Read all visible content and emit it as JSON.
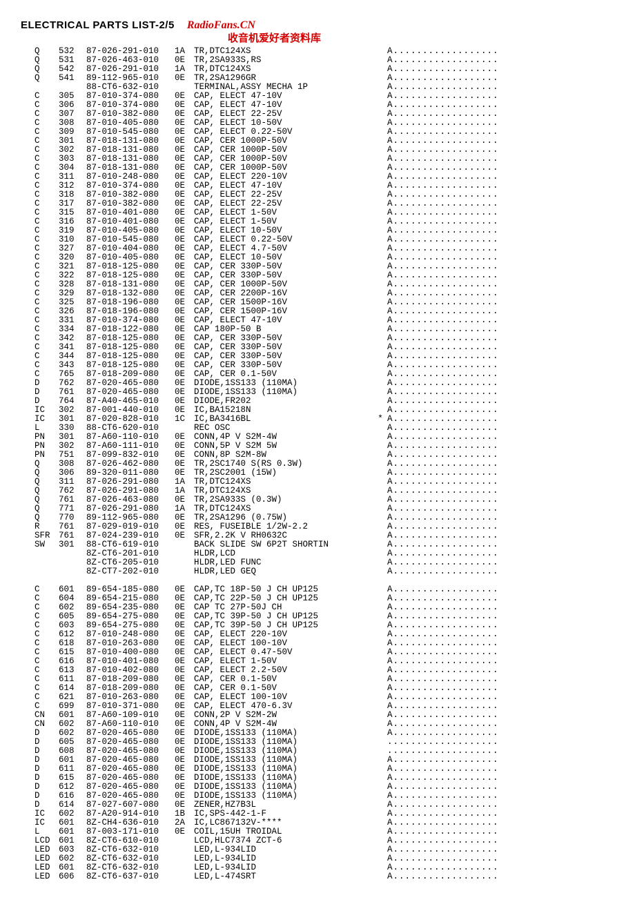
{
  "title": "ELECTRICAL PARTS LIST-2/5",
  "brand": "RadioFans.CN",
  "brand_sub": "收音机爱好者资料库",
  "watermark": "radiofans.cn",
  "dots_A": "A..................",
  "dots_noA": "...................",
  "font_family": "Courier New, monospace",
  "font_size_pt": 9,
  "text_color": "#000000",
  "accent_color": "#d40000",
  "bg_color": "#ffffff",
  "block1": [
    [
      "Q",
      "532",
      "87-026-291-010",
      "1A",
      "TR,DTC124XS",
      "",
      "A"
    ],
    [
      "Q",
      "531",
      "87-026-463-010",
      "0E",
      "TR,2SA933S,RS",
      "",
      "A"
    ],
    [
      "Q",
      "542",
      "87-026-291-010",
      "1A",
      "TR,DTC124XS",
      "",
      "A"
    ],
    [
      "Q",
      "541",
      "89-112-965-010",
      "0E",
      "TR,2SA1296GR",
      "",
      "A"
    ],
    [
      "",
      "",
      "88-CT6-632-010",
      "",
      "TERMINAL,ASSY MECHA 1P",
      "",
      "A"
    ],
    [
      "C",
      "305",
      "87-010-374-080",
      "0E",
      "CAP, ELECT 47-10V",
      "",
      "A"
    ],
    [
      "C",
      "306",
      "87-010-374-080",
      "0E",
      "CAP, ELECT 47-10V",
      "",
      "A"
    ],
    [
      "C",
      "307",
      "87-010-382-080",
      "0E",
      "CAP, ELECT 22-25V",
      "",
      "A"
    ],
    [
      "C",
      "308",
      "87-010-405-080",
      "0E",
      "CAP, ELECT 10-50V",
      "",
      "A"
    ],
    [
      "C",
      "309",
      "87-010-545-080",
      "0E",
      "CAP, ELECT 0.22-50V",
      "",
      "A"
    ],
    [
      "C",
      "301",
      "87-018-131-080",
      "0E",
      "CAP, CER 1000P-50V",
      "",
      "A"
    ],
    [
      "C",
      "302",
      "87-018-131-080",
      "0E",
      "CAP, CER 1000P-50V",
      "",
      "A"
    ],
    [
      "C",
      "303",
      "87-018-131-080",
      "0E",
      "CAP, CER 1000P-50V",
      "",
      "A"
    ],
    [
      "C",
      "304",
      "87-018-131-080",
      "0E",
      "CAP, CER 1000P-50V",
      "",
      "A"
    ],
    [
      "C",
      "311",
      "87-010-248-080",
      "0E",
      "CAP, ELECT 220-10V",
      "",
      "A"
    ],
    [
      "C",
      "312",
      "87-010-374-080",
      "0E",
      "CAP, ELECT 47-10V",
      "",
      "A"
    ],
    [
      "C",
      "318",
      "87-010-382-080",
      "0E",
      "CAP, ELECT 22-25V",
      "",
      "A"
    ],
    [
      "C",
      "317",
      "87-010-382-080",
      "0E",
      "CAP, ELECT 22-25V",
      "",
      "A"
    ],
    [
      "C",
      "315",
      "87-010-401-080",
      "0E",
      "CAP, ELECT 1-50V",
      "",
      "A"
    ],
    [
      "C",
      "316",
      "87-010-401-080",
      "0E",
      "CAP, ELECT 1-50V",
      "",
      "A"
    ],
    [
      "C",
      "319",
      "87-010-405-080",
      "0E",
      "CAP, ELECT 10-50V",
      "",
      "A"
    ],
    [
      "C",
      "310",
      "87-010-545-080",
      "0E",
      "CAP, ELECT 0.22-50V",
      "",
      "A"
    ],
    [
      "C",
      "327",
      "87-010-404-080",
      "0E",
      "CAP, ELECT 4.7-50V",
      "",
      "A"
    ],
    [
      "C",
      "320",
      "87-010-405-080",
      "0E",
      "CAP, ELECT 10-50V",
      "",
      "A"
    ],
    [
      "C",
      "321",
      "87-018-125-080",
      "0E",
      "CAP, CER 330P-50V",
      "",
      "A"
    ],
    [
      "C",
      "322",
      "87-018-125-080",
      "0E",
      "CAP, CER 330P-50V",
      "",
      "A"
    ],
    [
      "C",
      "328",
      "87-018-131-080",
      "0E",
      "CAP, CER 1000P-50V",
      "",
      "A"
    ],
    [
      "C",
      "329",
      "87-018-132-080",
      "0E",
      "CAP, CER 2200P-16V",
      "",
      "A"
    ],
    [
      "C",
      "325",
      "87-018-196-080",
      "0E",
      "CAP, CER 1500P-16V",
      "",
      "A"
    ],
    [
      "C",
      "326",
      "87-018-196-080",
      "0E",
      "CAP, CER 1500P-16V",
      "",
      "A"
    ],
    [
      "C",
      "331",
      "87-010-374-080",
      "0E",
      "CAP, ELECT 47-10V",
      "",
      "A"
    ],
    [
      "C",
      "334",
      "87-018-122-080",
      "0E",
      "CAP 180P-50 B",
      "",
      "A"
    ],
    [
      "C",
      "342",
      "87-018-125-080",
      "0E",
      "CAP, CER 330P-50V",
      "",
      "A"
    ],
    [
      "C",
      "341",
      "87-018-125-080",
      "0E",
      "CAP, CER 330P-50V",
      "",
      "A"
    ],
    [
      "C",
      "344",
      "87-018-125-080",
      "0E",
      "CAP, CER 330P-50V",
      "",
      "A"
    ],
    [
      "C",
      "343",
      "87-018-125-080",
      "0E",
      "CAP, CER 330P-50V",
      "",
      "A"
    ],
    [
      "C",
      "765",
      "87-018-209-080",
      "0E",
      "CAP, CER 0.1-50V",
      "",
      "A"
    ],
    [
      "D",
      "762",
      "87-020-465-080",
      "0E",
      "DIODE,1SS133 (110MA)",
      "",
      "A"
    ],
    [
      "D",
      "761",
      "87-020-465-080",
      "0E",
      "DIODE,1SS133 (110MA)",
      "",
      "A"
    ],
    [
      "D",
      "764",
      "87-A40-465-010",
      "0E",
      "DIODE,FR202",
      "",
      "A"
    ],
    [
      "IC",
      "302",
      "87-001-440-010",
      "0E",
      "IC,BA15218N",
      "",
      "A"
    ],
    [
      "IC",
      "301",
      "87-020-828-010",
      "1C",
      "IC,BA3416BL",
      "*",
      "A"
    ],
    [
      "L",
      "330",
      "88-CT6-620-010",
      "",
      "REC OSC",
      "",
      "A"
    ],
    [
      "PN",
      "301",
      "87-A60-110-010",
      "0E",
      "CONN,4P V S2M-4W",
      "",
      "A"
    ],
    [
      "PN",
      "302",
      "87-A60-111-010",
      "0E",
      "CONN,5P V S2M 5W",
      "",
      "A"
    ],
    [
      "PN",
      "751",
      "87-099-832-010",
      "0E",
      "CONN,8P S2M-8W",
      "",
      "A"
    ],
    [
      "Q",
      "308",
      "87-026-462-080",
      "0E",
      "TR,2SC1740 S(RS 0.3W)",
      "",
      "A"
    ],
    [
      "Q",
      "306",
      "89-320-011-080",
      "0E",
      "TR,2SC2001 (15W)",
      "",
      "A"
    ],
    [
      "Q",
      "311",
      "87-026-291-080",
      "1A",
      "TR,DTC124XS",
      "",
      "A"
    ],
    [
      "Q",
      "762",
      "87-026-291-080",
      "1A",
      "TR,DTC124XS",
      "",
      "A"
    ],
    [
      "Q",
      "761",
      "87-026-463-080",
      "0E",
      "TR,2SA933S (0.3W)",
      "",
      "A"
    ],
    [
      "Q",
      "771",
      "87-026-291-080",
      "1A",
      "TR,DTC124XS",
      "",
      "A"
    ],
    [
      "Q",
      "770",
      "89-112-965-080",
      "0E",
      "TR,2SA1296 (0.75W)",
      "",
      "A"
    ],
    [
      "R",
      "761",
      "87-029-019-010",
      "0E",
      "RES, FUSEIBLE 1/2W-2.2",
      "",
      "A"
    ],
    [
      "SFR",
      "761",
      "87-024-239-010",
      "0E",
      "SFR,2.2K V RH0632C",
      "",
      "A"
    ],
    [
      "SW",
      "301",
      "88-CT6-619-010",
      "",
      "BACK SLIDE SW 6P2T SHORTIN",
      "",
      "A"
    ],
    [
      "",
      "",
      "8Z-CT6-201-010",
      "",
      "HLDR,LCD",
      "",
      "A"
    ],
    [
      "",
      "",
      "8Z-CT6-205-010",
      "",
      "HLDR,LED FUNC",
      "",
      "A"
    ],
    [
      "",
      "",
      "8Z-CT7-202-010",
      "",
      "HLDR,LED GEQ",
      "",
      "A"
    ]
  ],
  "block2": [
    [
      "C",
      "601",
      "89-654-185-080",
      "0E",
      "CAP,TC 18P-50 J CH UP125",
      "",
      "A"
    ],
    [
      "C",
      "604",
      "89-654-215-080",
      "0E",
      "CAP,TC 22P-50 J CH UP125",
      "",
      "A"
    ],
    [
      "C",
      "602",
      "89-654-235-080",
      "0E",
      "CAP TC 27P-50J CH",
      "",
      "A"
    ],
    [
      "C",
      "605",
      "89-654-275-080",
      "0E",
      "CAP,TC 39P-50 J CH UP125",
      "",
      "A"
    ],
    [
      "C",
      "603",
      "89-654-275-080",
      "0E",
      "CAP,TC 39P-50 J CH UP125",
      "",
      "A"
    ],
    [
      "C",
      "612",
      "87-010-248-080",
      "0E",
      "CAP, ELECT 220-10V",
      "",
      "A"
    ],
    [
      "C",
      "618",
      "87-010-263-080",
      "0E",
      "CAP, ELECT 100-10V",
      "",
      "A"
    ],
    [
      "C",
      "615",
      "87-010-400-080",
      "0E",
      "CAP, ELECT 0.47-50V",
      "",
      "A"
    ],
    [
      "C",
      "616",
      "87-010-401-080",
      "0E",
      "CAP, ELECT 1-50V",
      "",
      "A"
    ],
    [
      "C",
      "613",
      "87-010-402-080",
      "0E",
      "CAP, ELECT 2.2-50V",
      "",
      "A"
    ],
    [
      "C",
      "611",
      "87-018-209-080",
      "0E",
      "CAP, CER 0.1-50V",
      "",
      "A"
    ],
    [
      "C",
      "614",
      "87-018-209-080",
      "0E",
      "CAP, CER 0.1-50V",
      "",
      "A"
    ],
    [
      "C",
      "621",
      "87-010-263-080",
      "0E",
      "CAP, ELECT 100-10V",
      "",
      "A"
    ],
    [
      "C",
      "699",
      "87-010-371-080",
      "0E",
      "CAP, ELECT 470-6.3V",
      "",
      "A"
    ],
    [
      "CN",
      "601",
      "87-A60-109-010",
      "0E",
      "CONN,2P V S2M-2W",
      "",
      "A"
    ],
    [
      "CN",
      "602",
      "87-A60-110-010",
      "0E",
      "CONN,4P V S2M-4W",
      "",
      "A"
    ],
    [
      "D",
      "602",
      "87-020-465-080",
      "0E",
      "DIODE,1SS133 (110MA)",
      "",
      "A"
    ],
    [
      "D",
      "605",
      "87-020-465-080",
      "0E",
      "DIODE,1SS133 (110MA)",
      "",
      ""
    ],
    [
      "D",
      "608",
      "87-020-465-080",
      "0E",
      "DIODE,1SS133 (110MA)",
      "",
      ""
    ],
    [
      "D",
      "601",
      "87-020-465-080",
      "0E",
      "DIODE,1SS133 (110MA)",
      "",
      "A"
    ],
    [
      "D",
      "611",
      "87-020-465-080",
      "0E",
      "DIODE,1SS133 (110MA)",
      "",
      "A"
    ],
    [
      "D",
      "615",
      "87-020-465-080",
      "0E",
      "DIODE,1SS133 (110MA)",
      "",
      "A"
    ],
    [
      "D",
      "612",
      "87-020-465-080",
      "0E",
      "DIODE,1SS133 (110MA)",
      "",
      "A"
    ],
    [
      "D",
      "616",
      "87-020-465-080",
      "0E",
      "DIODE,1SS133 (110MA)",
      "",
      "A"
    ],
    [
      "D",
      "614",
      "87-027-607-080",
      "0E",
      "ZENER,HZ7B3L",
      "",
      "A"
    ],
    [
      "IC",
      "602",
      "87-A20-914-010",
      "1B",
      "IC,SPS-442-1-F",
      "",
      "A"
    ],
    [
      "IC",
      "601",
      "8Z-CH4-636-010",
      "2A",
      "IC,LC867132V-****",
      "",
      "A"
    ],
    [
      "L",
      "601",
      "87-003-171-010",
      "0E",
      "COIL,15UH TROIDAL",
      "",
      "A"
    ],
    [
      "LCD",
      "601",
      "8Z-CT6-610-010",
      "",
      "LCD,HLC7374 ZCT-6",
      "",
      "A"
    ],
    [
      "LED",
      "603",
      "8Z-CT6-632-010",
      "",
      "LED,L-934LID",
      "",
      "A"
    ],
    [
      "LED",
      "602",
      "8Z-CT6-632-010",
      "",
      "LED,L-934LID",
      "",
      "A"
    ],
    [
      "LED",
      "601",
      "8Z-CT6-632-010",
      "",
      "LED,L-934LID",
      "",
      "A"
    ],
    [
      "LED",
      "606",
      "8Z-CT6-637-010",
      "",
      "LED,L-474SRT",
      "",
      "A"
    ]
  ]
}
